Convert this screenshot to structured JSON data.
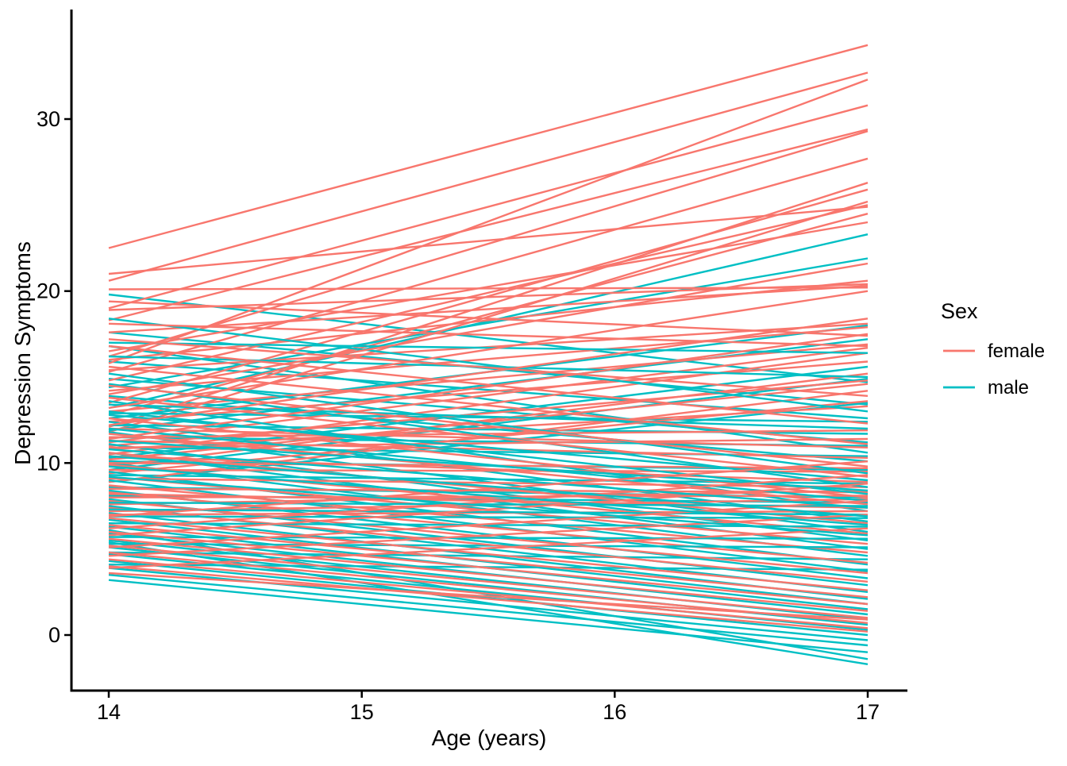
{
  "axes": {
    "x_title": "Age (years)",
    "y_title": "Depression Symptoms"
  },
  "legend": {
    "title": "Sex",
    "entries": [
      {
        "label": "female",
        "color": "#F8766D"
      },
      {
        "label": "male",
        "color": "#00BFC4"
      }
    ]
  },
  "chart_data": {
    "type": "line",
    "title": "",
    "xlabel": "Age (years)",
    "ylabel": "Depression Symptoms",
    "x": [
      14,
      17
    ],
    "xticks": [
      14,
      15,
      16,
      17
    ],
    "yticks": [
      0,
      10,
      20,
      30
    ],
    "xlim": [
      13.85,
      17.17
    ],
    "ylim": [
      -3.2,
      36.4
    ],
    "grid": false,
    "legend_position": "right",
    "line_width": 2.4,
    "series": [
      {
        "name": "female",
        "color": "#F8766D",
        "lines": [
          [
            22.5,
            34.3
          ],
          [
            20.6,
            32.7
          ],
          [
            19.0,
            30.8
          ],
          [
            18.3,
            29.4
          ],
          [
            15.8,
            32.3
          ],
          [
            16.2,
            29.3
          ],
          [
            15.3,
            27.7
          ],
          [
            12.1,
            26.3
          ],
          [
            13.5,
            25.9
          ],
          [
            11.8,
            25.2
          ],
          [
            14.8,
            25.0
          ],
          [
            12.8,
            24.5
          ],
          [
            18.9,
            20.4
          ],
          [
            17.6,
            20.3
          ],
          [
            16.0,
            20.6
          ],
          [
            15.4,
            18.1
          ],
          [
            14.2,
            17.9
          ],
          [
            13.0,
            16.9
          ],
          [
            11.2,
            16.7
          ],
          [
            10.5,
            16.4
          ],
          [
            12.4,
            15.9
          ],
          [
            9.8,
            15.2
          ],
          [
            11.0,
            14.8
          ],
          [
            10.2,
            14.6
          ],
          [
            8.9,
            14.2
          ],
          [
            9.4,
            13.6
          ],
          [
            10.8,
            13.3
          ],
          [
            11.5,
            11.9
          ],
          [
            10.9,
            11.4
          ],
          [
            12.0,
            10.9
          ],
          [
            11.3,
            10.3
          ],
          [
            10.0,
            9.7
          ],
          [
            9.6,
            9.5
          ],
          [
            10.4,
            8.9
          ],
          [
            9.1,
            8.6
          ],
          [
            8.5,
            8.3
          ],
          [
            8.0,
            8.1
          ],
          [
            7.6,
            8.4
          ],
          [
            7.2,
            7.9
          ],
          [
            8.2,
            7.4
          ],
          [
            7.0,
            7.2
          ],
          [
            12.6,
            8.0
          ],
          [
            11.7,
            7.6
          ],
          [
            10.6,
            6.5
          ],
          [
            9.9,
            5.9
          ],
          [
            9.2,
            5.3
          ],
          [
            8.7,
            4.8
          ],
          [
            8.3,
            4.2
          ],
          [
            7.8,
            3.6
          ],
          [
            7.4,
            3.1
          ],
          [
            6.8,
            2.6
          ],
          [
            6.4,
            2.2
          ],
          [
            6.0,
            1.8
          ],
          [
            5.6,
            1.4
          ],
          [
            5.2,
            1.0
          ],
          [
            4.8,
            0.7
          ],
          [
            4.4,
            0.4
          ],
          [
            4.0,
            0.2
          ],
          [
            3.6,
            0.9
          ],
          [
            3.9,
            6.2
          ],
          [
            4.6,
            7.0
          ],
          [
            5.1,
            7.8
          ],
          [
            5.8,
            8.8
          ],
          [
            6.2,
            9.3
          ],
          [
            6.9,
            10.1
          ],
          [
            16.8,
            12.3
          ],
          [
            15.6,
            11.1
          ],
          [
            14.5,
            9.8
          ],
          [
            13.8,
            9.2
          ],
          [
            17.2,
            13.9
          ],
          [
            18.1,
            16.8
          ],
          [
            19.4,
            17.4
          ],
          [
            20.1,
            20.2
          ],
          [
            21.0,
            24.9
          ],
          [
            16.5,
            24.0
          ],
          [
            14.0,
            21.6
          ],
          [
            13.2,
            20.0
          ],
          [
            12.2,
            18.4
          ],
          [
            11.4,
            17.5
          ]
        ]
      },
      {
        "name": "male",
        "color": "#00BFC4",
        "lines": [
          [
            19.8,
            14.7
          ],
          [
            17.6,
            13.4
          ],
          [
            16.8,
            10.6
          ],
          [
            15.9,
            12.6
          ],
          [
            14.9,
            11.2
          ],
          [
            13.9,
            10.1
          ],
          [
            13.2,
            23.3
          ],
          [
            14.4,
            21.9
          ],
          [
            12.6,
            18.0
          ],
          [
            10.3,
            15.6
          ],
          [
            9.6,
            14.9
          ],
          [
            8.9,
            13.5
          ],
          [
            11.9,
            17.2
          ],
          [
            12.9,
            12.4
          ],
          [
            12.2,
            11.7
          ],
          [
            11.5,
            11.0
          ],
          [
            10.9,
            10.4
          ],
          [
            10.1,
            9.6
          ],
          [
            9.3,
            8.8
          ],
          [
            8.6,
            8.0
          ],
          [
            8.1,
            7.7
          ],
          [
            13.6,
            7.2
          ],
          [
            12.4,
            6.6
          ],
          [
            11.8,
            6.0
          ],
          [
            11.1,
            5.5
          ],
          [
            10.6,
            5.0
          ],
          [
            10.0,
            4.6
          ],
          [
            9.5,
            4.1
          ],
          [
            9.0,
            3.7
          ],
          [
            8.4,
            3.3
          ],
          [
            7.9,
            2.9
          ],
          [
            7.5,
            2.5
          ],
          [
            7.1,
            2.1
          ],
          [
            6.7,
            1.8
          ],
          [
            6.3,
            1.5
          ],
          [
            5.9,
            1.2
          ],
          [
            5.5,
            0.9
          ],
          [
            5.1,
            0.6
          ],
          [
            4.7,
            0.3
          ],
          [
            4.3,
            0.0
          ],
          [
            3.9,
            -0.3
          ],
          [
            3.5,
            -0.6
          ],
          [
            3.2,
            -1.0
          ],
          [
            6.1,
            -1.4
          ],
          [
            5.4,
            -1.7
          ],
          [
            4.1,
            3.8
          ],
          [
            4.8,
            4.4
          ],
          [
            5.3,
            5.1
          ],
          [
            5.7,
            5.6
          ],
          [
            6.5,
            6.3
          ],
          [
            6.9,
            6.8
          ],
          [
            7.3,
            7.0
          ],
          [
            7.7,
            7.5
          ],
          [
            14.6,
            8.6
          ],
          [
            15.2,
            9.4
          ],
          [
            13.0,
            8.2
          ],
          [
            12.0,
            7.8
          ],
          [
            16.2,
            15.0
          ],
          [
            17.0,
            16.4
          ],
          [
            18.4,
            13.0
          ],
          [
            13.4,
            12.0
          ],
          [
            12.8,
            9.0
          ],
          [
            11.3,
            8.4
          ],
          [
            10.8,
            7.4
          ],
          [
            10.4,
            6.9
          ],
          [
            9.8,
            6.4
          ],
          [
            9.2,
            5.8
          ]
        ]
      }
    ]
  }
}
